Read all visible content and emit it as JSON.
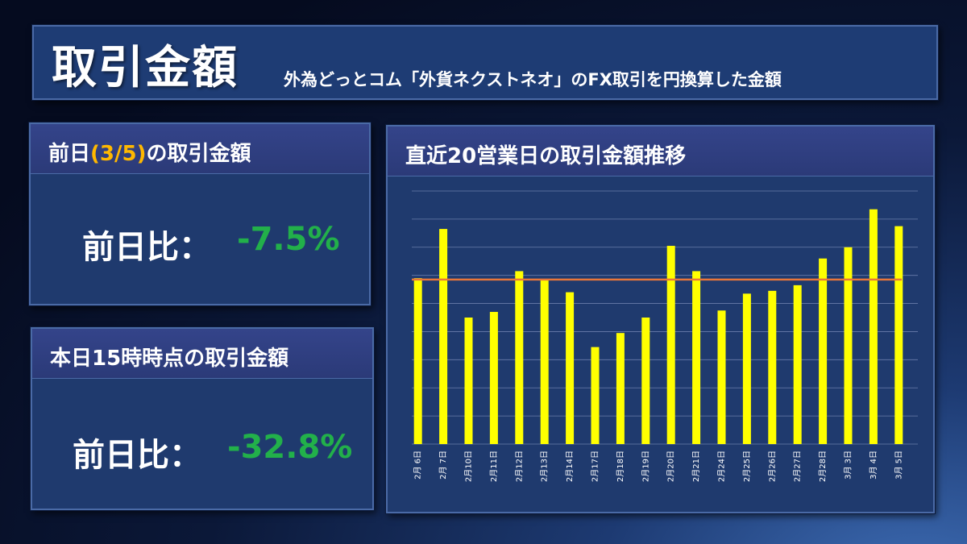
{
  "header": {
    "title": "取引金額",
    "subtitle": "外為どっとコム「外貨ネクストネオ」のFX取引を円換算した金額"
  },
  "previous_day": {
    "heading_prefix": "前日",
    "heading_date": "(3/5)",
    "heading_suffix": "の取引金額",
    "label": "前日比：",
    "change": "-7.5%"
  },
  "today": {
    "heading": "本日15時時点の取引金額",
    "label": "前日比：",
    "change": "-32.8%"
  },
  "colors": {
    "bars": "#ffff00",
    "average_line": "#e8763a",
    "positive_negative_value": "#22b04a",
    "accent": "#ffb800"
  },
  "chart_data": {
    "type": "bar",
    "title": "直近20営業日の取引金額推移",
    "categories": [
      "2月 6日",
      "2月 7日",
      "2月10日",
      "2月11日",
      "2月12日",
      "2月13日",
      "2月14日",
      "2月17日",
      "2月18日",
      "2月19日",
      "2月20日",
      "2月21日",
      "2月24日",
      "2月25日",
      "2月26日",
      "2月27日",
      "2月28日",
      "3月 3日",
      "3月 4日",
      "3月 5日"
    ],
    "values": [
      5.9,
      7.65,
      4.5,
      4.7,
      6.15,
      5.85,
      5.4,
      3.45,
      3.95,
      4.5,
      7.05,
      6.15,
      4.75,
      5.35,
      5.45,
      5.65,
      6.6,
      7.0,
      8.35,
      7.75
    ],
    "average": 5.85,
    "ylim": [
      0,
      9
    ],
    "gridlines": 9,
    "grid": true,
    "legend": "none",
    "ylabel": "",
    "xlabel": ""
  }
}
